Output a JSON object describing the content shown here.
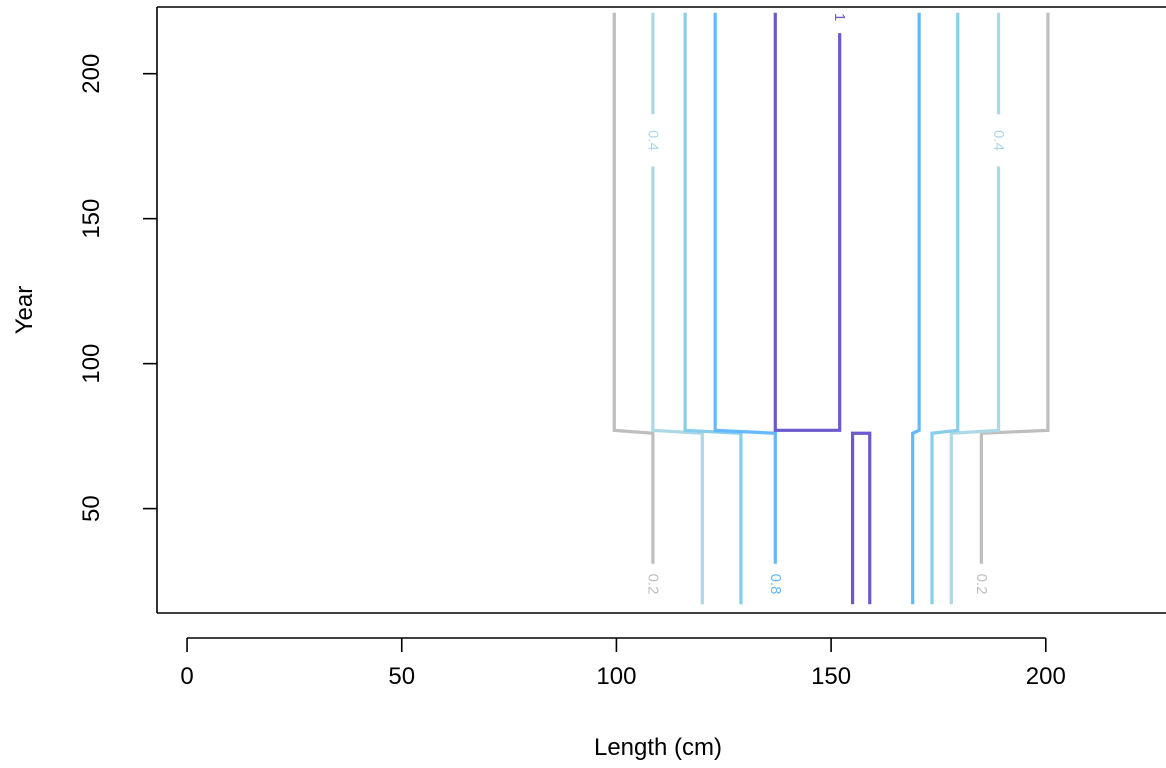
{
  "chart_data": {
    "type": "contour",
    "xlabel": "Length (cm)",
    "ylabel": "Year",
    "xlim": [
      -7,
      228
    ],
    "ylim": [
      14,
      223
    ],
    "xticks": [
      0,
      50,
      100,
      150,
      200
    ],
    "yticks": [
      50,
      100,
      150,
      200
    ],
    "grid": false,
    "contours": [
      {
        "level_label": "0.2",
        "color": "#bebebe",
        "paths": [
          [
            [
              99.5,
              221
            ],
            [
              99.5,
              77
            ],
            [
              108.5,
              76
            ],
            [
              108.5,
              31
            ]
          ],
          [
            [
              200.5,
              221
            ],
            [
              200.5,
              77
            ],
            [
              185,
              76
            ],
            [
              185,
              31
            ]
          ]
        ],
        "labels": [
          {
            "x": 108.5,
            "y": 24
          },
          {
            "x": 185,
            "y": 24
          }
        ]
      },
      {
        "level_label": "0.4",
        "color": "#add8e6",
        "paths": [
          [
            [
              108.5,
              221
            ],
            [
              108.5,
              186
            ]
          ],
          [
            [
              108.5,
              168
            ],
            [
              108.5,
              77
            ],
            [
              120,
              76
            ],
            [
              120,
              17
            ]
          ],
          [
            [
              189,
              221
            ],
            [
              189,
              186
            ]
          ],
          [
            [
              189,
              168
            ],
            [
              189,
              77
            ],
            [
              178,
              76
            ],
            [
              178,
              17
            ]
          ]
        ],
        "labels": [
          {
            "x": 108.5,
            "y": 177
          },
          {
            "x": 189,
            "y": 177
          }
        ]
      },
      {
        "level_label": "",
        "color": "#87ceeb",
        "paths": [
          [
            [
              116,
              221
            ],
            [
              116,
              77
            ],
            [
              129,
              76
            ],
            [
              129,
              17
            ]
          ],
          [
            [
              179.5,
              221
            ],
            [
              179.5,
              77
            ],
            [
              173.5,
              76
            ],
            [
              173.5,
              17
            ]
          ]
        ],
        "labels": []
      },
      {
        "level_label": "0.8",
        "color": "#63b8ff",
        "paths": [
          [
            [
              123,
              221
            ],
            [
              123,
              77
            ],
            [
              137,
              76
            ],
            [
              137,
              31
            ]
          ],
          [
            [
              170.5,
              221
            ],
            [
              170.5,
              77
            ],
            [
              169,
              76
            ],
            [
              169,
              17
            ]
          ]
        ],
        "labels": [
          {
            "x": 137,
            "y": 24
          }
        ]
      },
      {
        "level_label": "1",
        "color": "#6a5acd",
        "paths": [
          [
            [
              137,
              221
            ],
            [
              137,
              77
            ],
            [
              152,
              77
            ],
            [
              152,
              214
            ]
          ],
          [
            [
              155,
              17
            ],
            [
              155,
              76
            ],
            [
              159,
              76
            ],
            [
              159,
              17
            ]
          ]
        ],
        "labels": [
          {
            "x": 152,
            "y": 219.5
          }
        ]
      }
    ]
  }
}
